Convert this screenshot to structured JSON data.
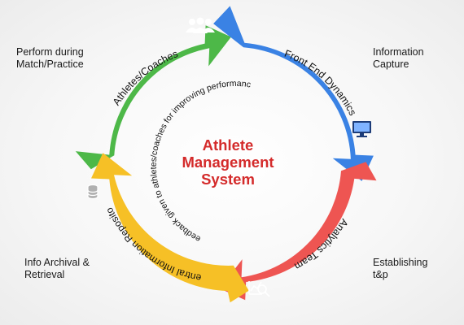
{
  "title": {
    "line1": "Athlete",
    "line2": "Management",
    "line3": "System"
  },
  "arcs": [
    {
      "label": "Athletes/Coaches",
      "color": "#4db848",
      "icon": "group-of-people-icon"
    },
    {
      "label": "Front End Dynamics",
      "color": "#3a82e4",
      "icon": "monitor-icon"
    },
    {
      "label": "Analytics Team",
      "color": "#ee5552",
      "icon": "chart-magnifier-icon"
    },
    {
      "label": "Central Information Repository",
      "color": "#f6c026",
      "icon": "database-icon"
    }
  ],
  "side_labels": {
    "top_left": {
      "line1": "Perform during",
      "line2": "Match/Practice"
    },
    "top_right": {
      "line1": "Information",
      "line2": "Capture"
    },
    "bottom_right": {
      "line1": "Establishing",
      "line2": "t&p"
    },
    "bottom_left": {
      "line1": "Info Archival &",
      "line2": "Retrieval"
    }
  },
  "feedback_text": "Feedback given to athletes/coaches for improving performance",
  "colors": {
    "title": "#d42b2b",
    "arc_text": "#111111",
    "side_text": "#1a1a1a"
  }
}
